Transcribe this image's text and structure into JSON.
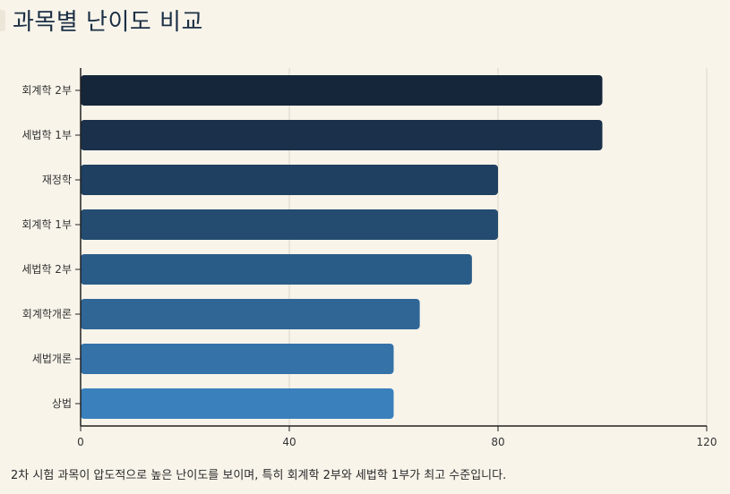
{
  "title": "과목별 난이도 비교",
  "caption": "2차 시험 과목이 압도적으로 높은 난이도를 보이며, 특히 회계학 2부와 세법학 1부가 최고 수준입니다.",
  "chart_data": {
    "type": "bar",
    "orientation": "horizontal",
    "categories": [
      "회계학 2부",
      "세법학 1부",
      "재정학",
      "회계학 1부",
      "세법학 2부",
      "회계학개론",
      "세법개론",
      "상법"
    ],
    "values": [
      100,
      100,
      80,
      80,
      75,
      65,
      60,
      60
    ],
    "xlim": [
      0,
      120
    ],
    "xticks": [
      "0",
      "40",
      "80",
      "120"
    ],
    "grid": true,
    "bar_colors": [
      "#16263a",
      "#1b314b",
      "#1f4060",
      "#234c70",
      "#2a5c88",
      "#2f6696",
      "#3472a8",
      "#3a80bc"
    ]
  }
}
